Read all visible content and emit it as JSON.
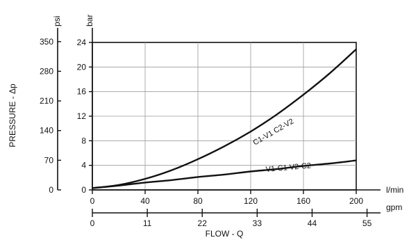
{
  "chart_data": {
    "type": "line",
    "x_units": "l/min",
    "x_secondary_units": "gpm",
    "y_units": "bar",
    "y_secondary_units": "psi",
    "xlabel": "FLOW - Q",
    "ylabel": "PRESSURE - Δp",
    "xlim": [
      0,
      200
    ],
    "ylim": [
      0,
      24
    ],
    "x_ticks": [
      "0",
      "40",
      "80",
      "120",
      "160",
      "200"
    ],
    "x_secondary_ticks": [
      "0",
      "11",
      "22",
      "33",
      "44",
      "55"
    ],
    "y_ticks": [
      "0",
      "4",
      "8",
      "12",
      "16",
      "20",
      "24"
    ],
    "y_secondary_ticks": [
      "0",
      "70",
      "140",
      "210",
      "280",
      "350"
    ],
    "grid": true,
    "series": [
      {
        "name": "C1-V1 C2-V2",
        "x": [
          0,
          20,
          40,
          60,
          80,
          100,
          120,
          140,
          160,
          180,
          200
        ],
        "y": [
          0.3,
          0.8,
          1.8,
          3.2,
          5.0,
          7.1,
          9.5,
          12.3,
          15.5,
          19.0,
          22.9
        ]
      },
      {
        "name": "V1-C1 V2-C2",
        "x": [
          0,
          20,
          40,
          60,
          80,
          100,
          120,
          140,
          160,
          180,
          200
        ],
        "y": [
          0.3,
          0.7,
          1.2,
          1.6,
          2.1,
          2.5,
          3.0,
          3.4,
          3.9,
          4.3,
          4.8
        ]
      }
    ]
  }
}
